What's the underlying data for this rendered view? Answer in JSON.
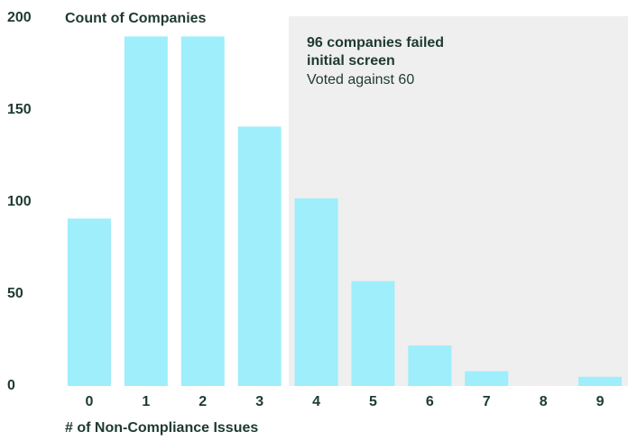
{
  "chart_data": {
    "type": "bar",
    "title": "Count of Companies",
    "x_label": "# of Non-Compliance Issues",
    "annotation": [
      "96 companies failed",
      "initial screen",
      "Voted against 60"
    ],
    "categories": [
      "0",
      "1",
      "2",
      "3",
      "4",
      "5",
      "6",
      "7",
      "8",
      "9"
    ],
    "values": [
      91,
      190,
      190,
      141,
      102,
      57,
      22,
      8,
      0,
      5
    ],
    "color": "#9eeefc",
    "ylim": [
      0,
      200
    ],
    "yticks": [
      0,
      50,
      100,
      150,
      200
    ],
    "grid": false
  }
}
